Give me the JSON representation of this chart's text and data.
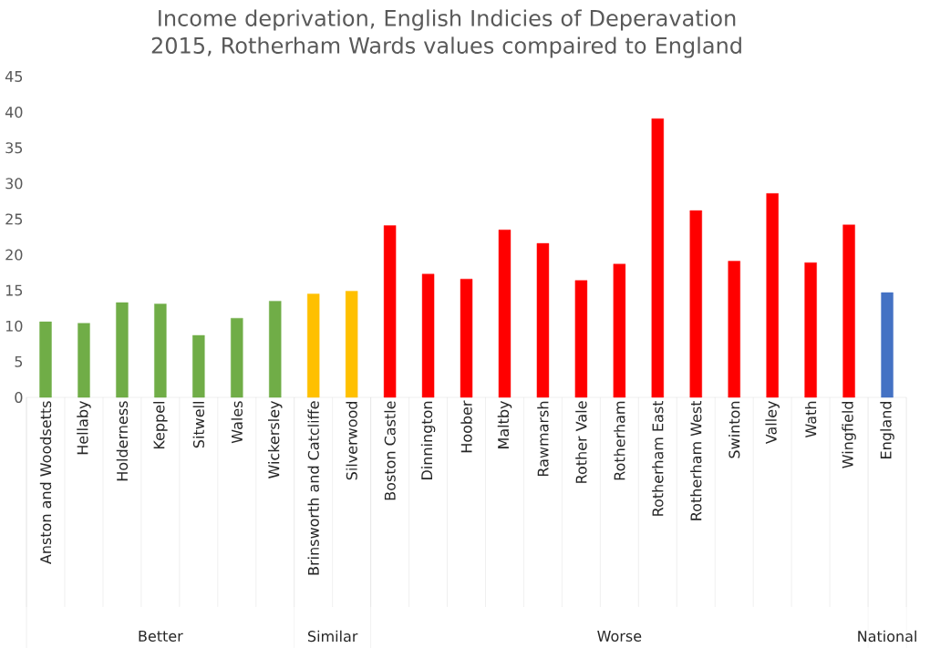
{
  "chart_data": {
    "type": "bar",
    "title": "Income deprivation, English Indicies of Deperavation 2015, Rotherham Wards values compaired to England",
    "categories": [
      "Anston and Woodsetts",
      "Hellaby",
      "Holderness",
      "Keppel",
      "Sitwell",
      "Wales",
      "Wickersley",
      "Brinsworth and Catcliffe",
      "Silverwood",
      "Boston Castle",
      "Dinnington",
      "Hoober",
      "Maltby",
      "Rawmarsh",
      "Rother Vale",
      "Rotherham",
      "Rotherham East",
      "Rotherham West",
      "Swinton",
      "Valley",
      "Wath",
      "Wingfield",
      "England"
    ],
    "values": [
      10.6,
      10.4,
      13.3,
      13.1,
      8.7,
      11.1,
      13.5,
      14.5,
      14.9,
      24.1,
      17.3,
      16.6,
      23.5,
      21.6,
      16.4,
      18.7,
      39.1,
      26.2,
      19.1,
      28.6,
      18.9,
      24.2,
      14.7
    ],
    "colors": [
      "#70ad47",
      "#70ad47",
      "#70ad47",
      "#70ad47",
      "#70ad47",
      "#70ad47",
      "#70ad47",
      "#ffc000",
      "#ffc000",
      "#ff0000",
      "#ff0000",
      "#ff0000",
      "#ff0000",
      "#ff0000",
      "#ff0000",
      "#ff0000",
      "#ff0000",
      "#ff0000",
      "#ff0000",
      "#ff0000",
      "#ff0000",
      "#ff0000",
      "#4472c4"
    ],
    "annotations": [
      "Better",
      "Similar",
      "Worse",
      "National"
    ],
    "ylim": [
      0,
      45
    ],
    "yticks": [
      0,
      5,
      10,
      15,
      20,
      25,
      30,
      35,
      40,
      45
    ],
    "grid": false
  }
}
